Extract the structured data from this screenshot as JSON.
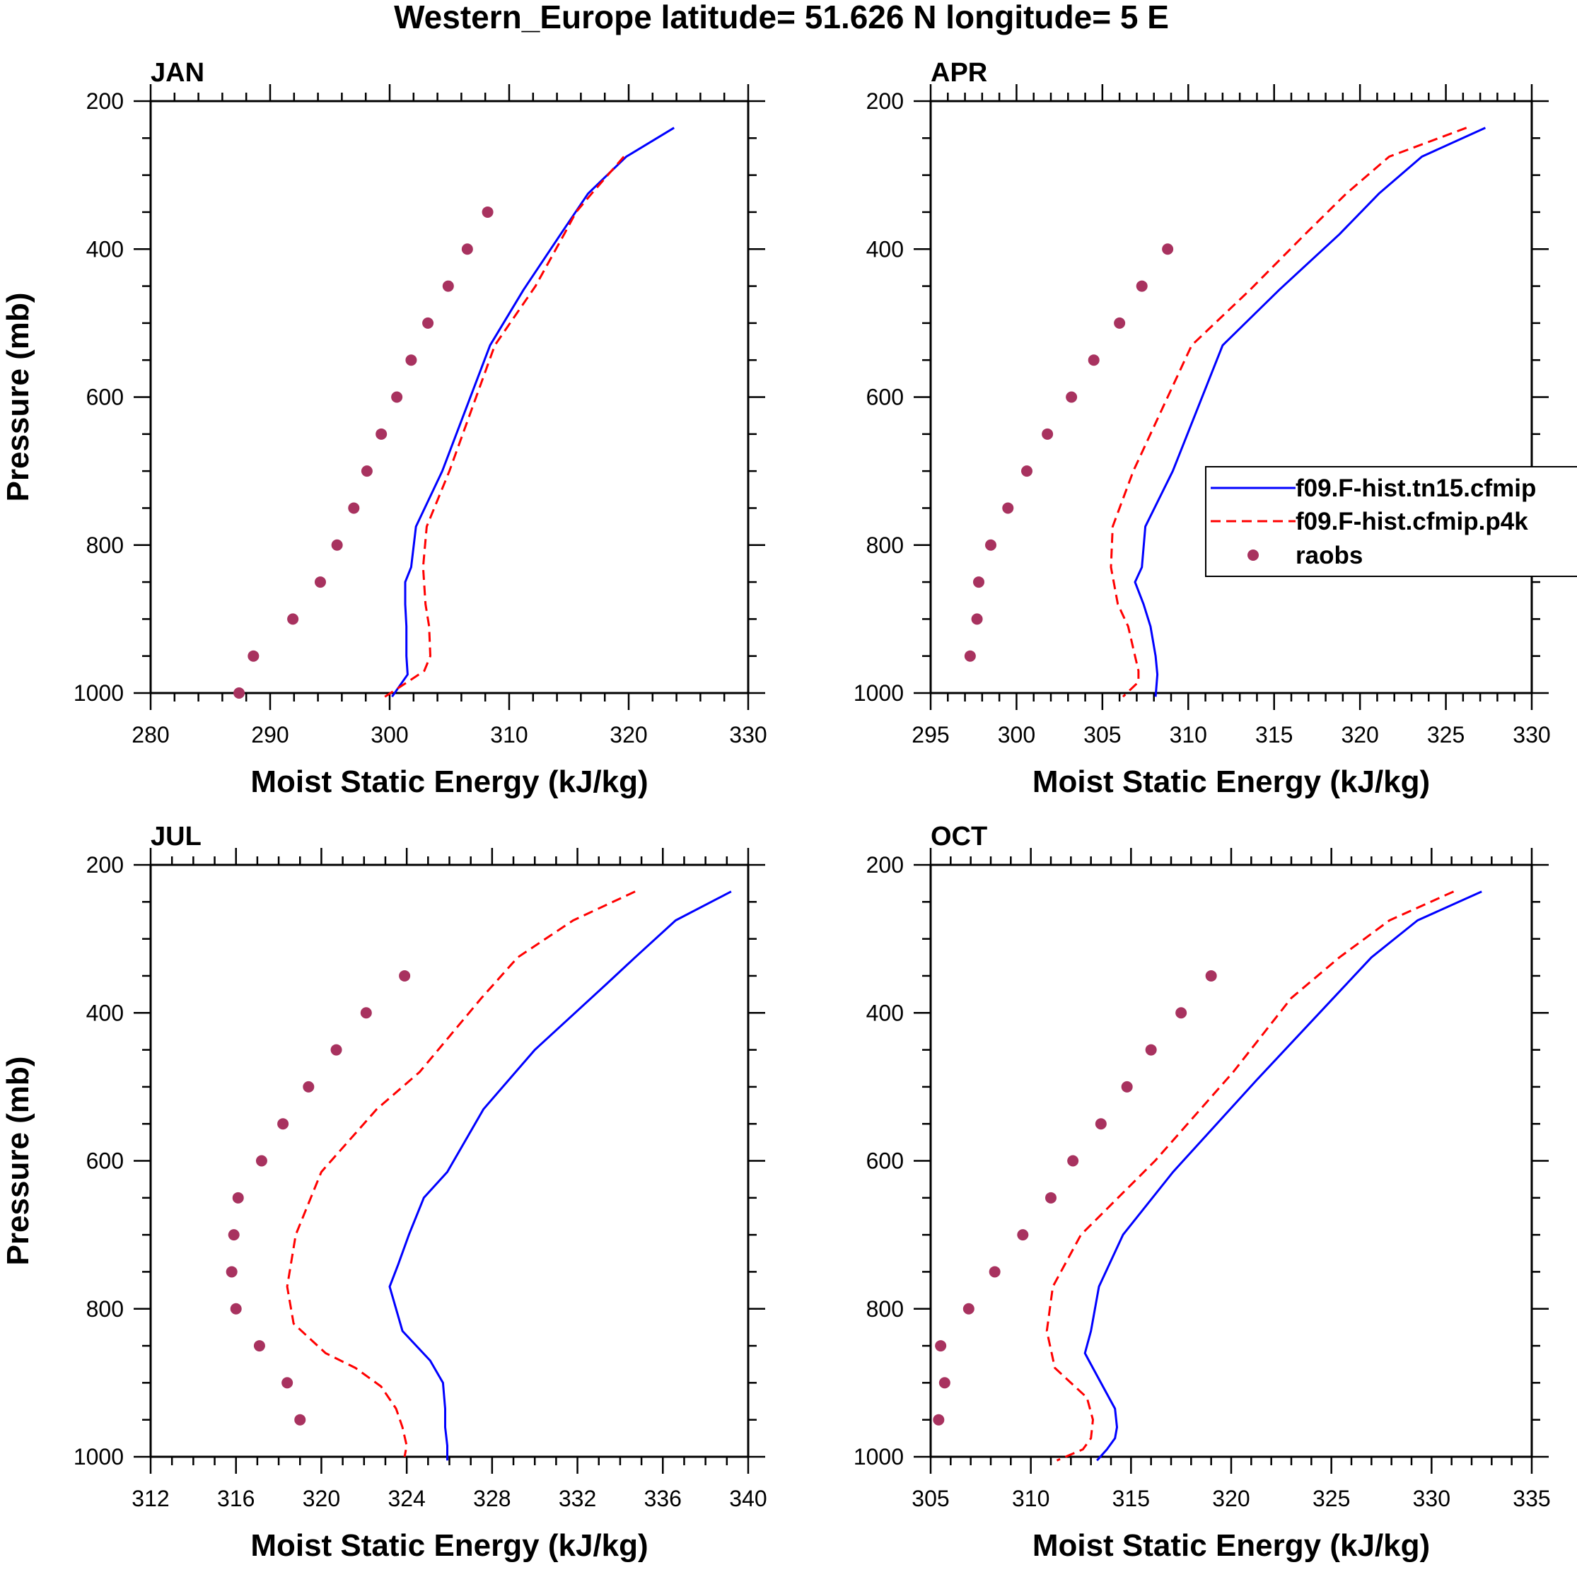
{
  "figure_title": "Western_Europe  latitude= 51.626 N longitude= 5 E",
  "colors": {
    "model1": "#0000ff",
    "model2": "#ff0000",
    "obs": "#a8325f",
    "axis": "#000000"
  },
  "legend": {
    "panel": "APR",
    "placement": "right",
    "entries": [
      {
        "label": "f09.F-hist.tn15.cfmip",
        "style": "solid-blue-line"
      },
      {
        "label": "f09.F-hist.cfmip.p4k",
        "style": "dashed-red-line"
      },
      {
        "label": "raobs",
        "style": "purple-dot"
      }
    ]
  },
  "chart_data": [
    {
      "type": "line",
      "title": "JAN",
      "xlabel": "Moist Static Energy (kJ/kg)",
      "ylabel": "Pressure (mb)",
      "xlim": [
        280,
        330
      ],
      "ylim": [
        1000,
        200
      ],
      "y_reversed": true,
      "xticks": [
        "280",
        "290",
        "300",
        "310",
        "320",
        "330"
      ],
      "yticks": [
        "200",
        "400",
        "600",
        "800",
        "1000"
      ],
      "series": [
        {
          "name": "f09.F-hist.tn15.cfmip",
          "style": "solid",
          "x": [
            323.8,
            319.8,
            316.6,
            314.3,
            311.2,
            308.4,
            304.4,
            302.2,
            301.8,
            301.3,
            301.3,
            301.4,
            301.4,
            301.5,
            300.2
          ],
          "y": [
            236,
            275,
            325,
            380,
            455,
            530,
            700,
            775,
            830,
            850,
            880,
            910,
            950,
            975,
            1005
          ]
        },
        {
          "name": "f09.F-hist.cfmip.p4k",
          "style": "dashed",
          "x": [
            319.6,
            316.9,
            315.6,
            314.6,
            312.2,
            308.8,
            305.0,
            303.1,
            302.8,
            303.0,
            303.3,
            303.4,
            302.9,
            301.5,
            299.6
          ],
          "y": [
            275,
            325,
            350,
            380,
            450,
            530,
            700,
            775,
            830,
            880,
            910,
            950,
            970,
            985,
            1005
          ]
        },
        {
          "name": "raobs",
          "style": "markers",
          "x": [
            308.2,
            306.5,
            304.9,
            303.2,
            301.8,
            300.6,
            299.3,
            298.1,
            297.0,
            295.6,
            294.2,
            291.9,
            288.6,
            287.4
          ],
          "y": [
            350,
            400,
            450,
            500,
            550,
            600,
            650,
            700,
            750,
            800,
            850,
            900,
            950,
            1000
          ]
        }
      ]
    },
    {
      "type": "line",
      "title": "APR",
      "xlabel": "Moist Static Energy (kJ/kg)",
      "ylabel": "",
      "xlim": [
        295,
        330
      ],
      "ylim": [
        1000,
        200
      ],
      "y_reversed": true,
      "xticks": [
        "295",
        "300",
        "305",
        "310",
        "315",
        "320",
        "325",
        "330"
      ],
      "yticks": [
        "200",
        "400",
        "600",
        "800",
        "1000"
      ],
      "series": [
        {
          "name": "f09.F-hist.tn15.cfmip",
          "style": "solid",
          "x": [
            327.3,
            323.6,
            321.1,
            318.8,
            315.3,
            312.0,
            309.1,
            307.5,
            307.3,
            306.9,
            307.4,
            307.8,
            308.1,
            308.2,
            308.1
          ],
          "y": [
            236,
            275,
            325,
            380,
            455,
            530,
            700,
            775,
            830,
            850,
            880,
            910,
            950,
            975,
            1005
          ]
        },
        {
          "name": "f09.F-hist.cfmip.p4k",
          "style": "dashed",
          "x": [
            326.2,
            321.7,
            319.2,
            316.8,
            313.6,
            310.2,
            306.8,
            305.6,
            305.5,
            305.9,
            306.5,
            306.9,
            307.1,
            307.1,
            306.2
          ],
          "y": [
            236,
            275,
            325,
            380,
            455,
            530,
            700,
            775,
            830,
            880,
            910,
            950,
            970,
            985,
            1005
          ]
        },
        {
          "name": "raobs",
          "style": "markers",
          "x": [
            308.8,
            307.3,
            306.0,
            304.5,
            303.2,
            301.8,
            300.6,
            299.5,
            298.5,
            297.8,
            297.7,
            297.3
          ],
          "y": [
            400,
            450,
            500,
            550,
            600,
            650,
            700,
            750,
            800,
            850,
            900,
            950
          ]
        }
      ]
    },
    {
      "type": "line",
      "title": "JUL",
      "xlabel": "Moist Static Energy (kJ/kg)",
      "ylabel": "Pressure (mb)",
      "xlim": [
        312,
        340
      ],
      "ylim": [
        1000,
        200
      ],
      "y_reversed": true,
      "xticks": [
        "312",
        "316",
        "320",
        "324",
        "328",
        "332",
        "336",
        "340"
      ],
      "yticks": [
        "200",
        "400",
        "600",
        "800",
        "1000"
      ],
      "series": [
        {
          "name": "f09.F-hist.tn15.cfmip",
          "style": "solid",
          "x": [
            339.2,
            336.6,
            334.7,
            333.4,
            330.0,
            327.6,
            325.9,
            324.8,
            324.1,
            323.6,
            323.2,
            323.8,
            325.1,
            325.7,
            325.8,
            325.8,
            325.9,
            325.9
          ],
          "y": [
            236,
            275,
            325,
            360,
            450,
            530,
            615,
            650,
            700,
            740,
            770,
            830,
            870,
            900,
            935,
            960,
            985,
            1005
          ]
        },
        {
          "name": "f09.F-hist.cfmip.p4k",
          "style": "dashed",
          "x": [
            334.7,
            331.8,
            329.2,
            327.5,
            324.6,
            322.6,
            320.0,
            318.8,
            318.4,
            318.7,
            320.2,
            321.6,
            322.8,
            323.5,
            323.8,
            324.0,
            323.9
          ],
          "y": [
            236,
            275,
            325,
            380,
            480,
            530,
            615,
            700,
            770,
            820,
            860,
            880,
            905,
            935,
            960,
            985,
            1000
          ]
        },
        {
          "name": "raobs",
          "style": "markers",
          "x": [
            323.9,
            322.1,
            320.7,
            319.4,
            318.2,
            317.2,
            316.1,
            315.9,
            315.8,
            316.0,
            317.1,
            318.4,
            319.0
          ],
          "y": [
            350,
            400,
            450,
            500,
            550,
            600,
            650,
            700,
            750,
            800,
            850,
            900,
            950
          ]
        }
      ]
    },
    {
      "type": "line",
      "title": "OCT",
      "xlabel": "Moist Static Energy (kJ/kg)",
      "ylabel": "",
      "xlim": [
        305,
        335
      ],
      "ylim": [
        1000,
        200
      ],
      "y_reversed": true,
      "xticks": [
        "305",
        "310",
        "315",
        "320",
        "325",
        "330",
        "335"
      ],
      "yticks": [
        "200",
        "400",
        "600",
        "800",
        "1000"
      ],
      "series": [
        {
          "name": "f09.F-hist.tn15.cfmip",
          "style": "solid",
          "x": [
            332.5,
            329.3,
            327.0,
            325.1,
            321.3,
            317.1,
            314.6,
            313.4,
            313.0,
            312.7,
            312.9,
            313.5,
            314.2,
            314.3,
            314.2,
            313.8,
            313.3
          ],
          "y": [
            236,
            275,
            325,
            380,
            490,
            615,
            700,
            770,
            830,
            860,
            870,
            900,
            935,
            960,
            975,
            990,
            1005
          ]
        },
        {
          "name": "f09.F-hist.cfmip.p4k",
          "style": "dashed",
          "x": [
            331.1,
            327.9,
            325.4,
            323.0,
            320.1,
            316.2,
            312.5,
            311.1,
            310.8,
            311.2,
            312.0,
            312.8,
            313.1,
            313.0,
            312.6,
            311.3
          ],
          "y": [
            236,
            275,
            325,
            380,
            480,
            600,
            700,
            770,
            830,
            880,
            900,
            920,
            950,
            975,
            990,
            1005
          ]
        },
        {
          "name": "raobs",
          "style": "markers",
          "x": [
            319.0,
            317.5,
            316.0,
            314.8,
            313.5,
            312.1,
            311.0,
            309.6,
            308.2,
            306.9,
            305.5,
            305.7,
            305.4
          ],
          "y": [
            350,
            400,
            450,
            500,
            550,
            600,
            650,
            700,
            750,
            800,
            850,
            900,
            950
          ]
        }
      ]
    }
  ]
}
